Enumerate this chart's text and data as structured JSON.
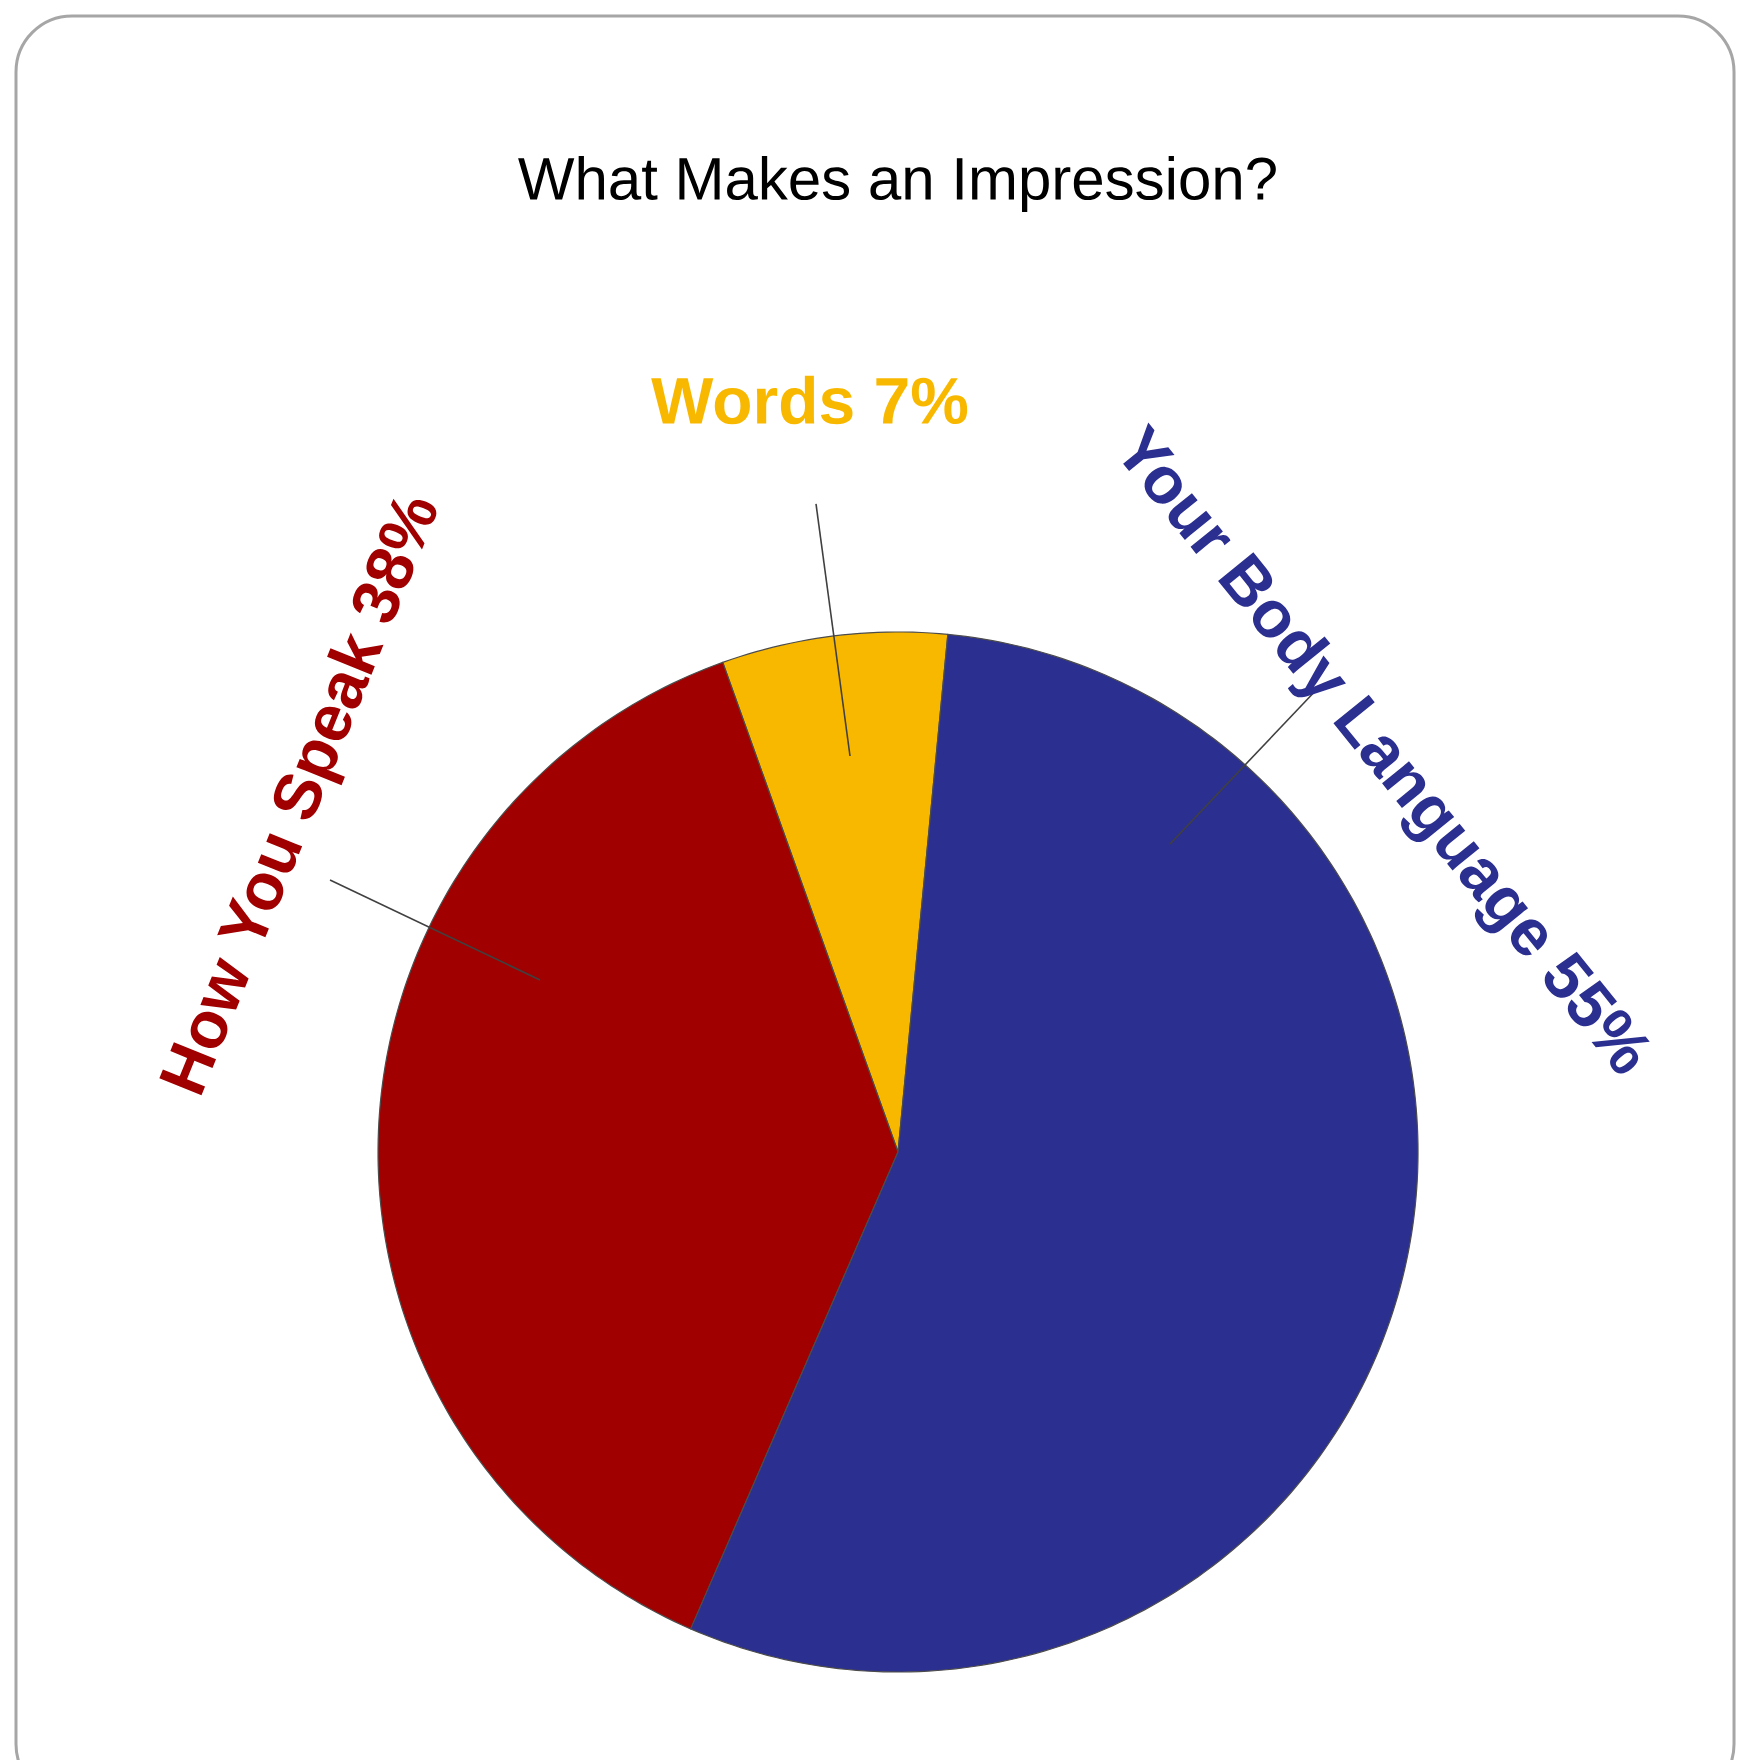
{
  "chart_data": {
    "type": "pie",
    "title": "What Makes an Impression?",
    "categories": [
      "Words",
      "How You Speak",
      "Your Body Language"
    ],
    "values": [
      7,
      38,
      55
    ],
    "value_labels": [
      "7%",
      "38%",
      "55%"
    ],
    "colors": [
      "#f9b800",
      "#a00000",
      "#2b2f8f"
    ]
  }
}
